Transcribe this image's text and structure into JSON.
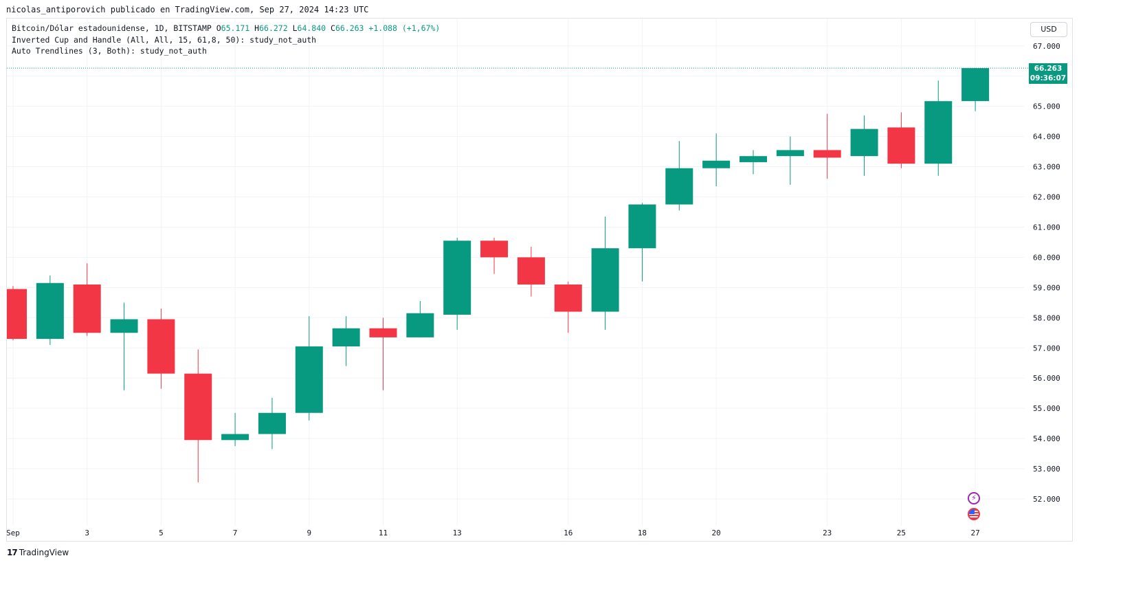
{
  "header": {
    "credit": "nicolas_antiporovich publicado en TradingView.com, Sep 27, 2024 14:23 UTC"
  },
  "legend": {
    "symbol": "Bitcoin/Dólar estadounidense, 1D, BITSTAMP",
    "o_label": "O",
    "o_value": "65.171",
    "h_label": "H",
    "h_value": "66.272",
    "l_label": "L",
    "l_value": "64.840",
    "c_label": "C",
    "c_value": "66.263",
    "change": "+1.088 (+1,67%)",
    "indicator1": "Inverted Cup and Handle (All, All, 15, 61,8, 50): study_not_auth",
    "indicator2": "Auto Trendlines (3, Both): study_not_auth"
  },
  "price_scale": {
    "currency": "USD"
  },
  "last_price": {
    "price": "66.263",
    "countdown": "09:36:07"
  },
  "footer": {
    "brand": "TradingView"
  },
  "icons": {
    "event_1": "lightning-icon",
    "event_2": "us-flag-icon"
  },
  "colors": {
    "up": "#089981",
    "down": "#f23645",
    "grid": "#f0f3fa",
    "text": "#131722"
  },
  "chart_data": {
    "type": "candlestick",
    "symbol": "Bitcoin/Dólar estadounidense",
    "interval": "1D",
    "exchange": "BITSTAMP",
    "ylim": [
      51,
      67.4
    ],
    "y_ticks": [
      "52.000",
      "53.000",
      "54.000",
      "55.000",
      "56.000",
      "57.000",
      "58.000",
      "59.000",
      "60.000",
      "61.000",
      "62.000",
      "63.000",
      "64.000",
      "65.000",
      "66.000",
      "67.000"
    ],
    "y_tick_values": [
      52,
      53,
      54,
      55,
      56,
      57,
      58,
      59,
      60,
      61,
      62,
      63,
      64,
      65,
      66,
      67
    ],
    "x_labels": [
      {
        "day": 1,
        "label": "Sep"
      },
      {
        "day": 3,
        "label": "3"
      },
      {
        "day": 5,
        "label": "5"
      },
      {
        "day": 7,
        "label": "7"
      },
      {
        "day": 9,
        "label": "9"
      },
      {
        "day": 11,
        "label": "11"
      },
      {
        "day": 13,
        "label": "13"
      },
      {
        "day": 16,
        "label": "16"
      },
      {
        "day": 18,
        "label": "18"
      },
      {
        "day": 20,
        "label": "20"
      },
      {
        "day": 23,
        "label": "23"
      },
      {
        "day": 25,
        "label": "25"
      },
      {
        "day": 27,
        "label": "27"
      }
    ],
    "grid": true,
    "unit": "thousand USD",
    "candles": [
      {
        "day": 1,
        "o": 58.95,
        "h": 59.05,
        "l": 57.25,
        "c": 57.3
      },
      {
        "day": 2,
        "o": 57.3,
        "h": 59.4,
        "l": 57.1,
        "c": 59.15
      },
      {
        "day": 3,
        "o": 59.1,
        "h": 59.8,
        "l": 57.4,
        "c": 57.5
      },
      {
        "day": 4,
        "o": 57.5,
        "h": 58.5,
        "l": 55.6,
        "c": 57.95
      },
      {
        "day": 5,
        "o": 57.95,
        "h": 58.3,
        "l": 55.65,
        "c": 56.15
      },
      {
        "day": 6,
        "o": 56.15,
        "h": 56.95,
        "l": 52.55,
        "c": 53.95
      },
      {
        "day": 7,
        "o": 53.95,
        "h": 54.85,
        "l": 53.75,
        "c": 54.15
      },
      {
        "day": 8,
        "o": 54.15,
        "h": 55.35,
        "l": 53.65,
        "c": 54.85
      },
      {
        "day": 9,
        "o": 54.85,
        "h": 58.05,
        "l": 54.6,
        "c": 57.05
      },
      {
        "day": 10,
        "o": 57.05,
        "h": 58.05,
        "l": 56.4,
        "c": 57.65
      },
      {
        "day": 11,
        "o": 57.65,
        "h": 58.0,
        "l": 55.6,
        "c": 57.35
      },
      {
        "day": 12,
        "o": 57.35,
        "h": 58.55,
        "l": 57.35,
        "c": 58.15
      },
      {
        "day": 13,
        "o": 58.1,
        "h": 60.65,
        "l": 57.6,
        "c": 60.55
      },
      {
        "day": 14,
        "o": 60.55,
        "h": 60.65,
        "l": 59.45,
        "c": 60.0
      },
      {
        "day": 15,
        "o": 60.0,
        "h": 60.35,
        "l": 58.7,
        "c": 59.1
      },
      {
        "day": 16,
        "o": 59.1,
        "h": 59.2,
        "l": 57.5,
        "c": 58.2
      },
      {
        "day": 17,
        "o": 58.2,
        "h": 61.35,
        "l": 57.6,
        "c": 60.3
      },
      {
        "day": 18,
        "o": 60.3,
        "h": 61.8,
        "l": 59.2,
        "c": 61.75
      },
      {
        "day": 19,
        "o": 61.75,
        "h": 63.85,
        "l": 61.55,
        "c": 62.95
      },
      {
        "day": 20,
        "o": 62.95,
        "h": 64.1,
        "l": 62.35,
        "c": 63.2
      },
      {
        "day": 21,
        "o": 63.15,
        "h": 63.55,
        "l": 62.75,
        "c": 63.35
      },
      {
        "day": 22,
        "o": 63.35,
        "h": 64.0,
        "l": 62.4,
        "c": 63.55
      },
      {
        "day": 23,
        "o": 63.55,
        "h": 64.75,
        "l": 62.6,
        "c": 63.3
      },
      {
        "day": 24,
        "o": 63.35,
        "h": 64.7,
        "l": 62.7,
        "c": 64.25
      },
      {
        "day": 25,
        "o": 64.3,
        "h": 64.8,
        "l": 62.95,
        "c": 63.1
      },
      {
        "day": 26,
        "o": 63.1,
        "h": 65.85,
        "l": 62.7,
        "c": 65.17
      },
      {
        "day": 27,
        "o": 65.171,
        "h": 66.272,
        "l": 64.84,
        "c": 66.263
      }
    ]
  }
}
